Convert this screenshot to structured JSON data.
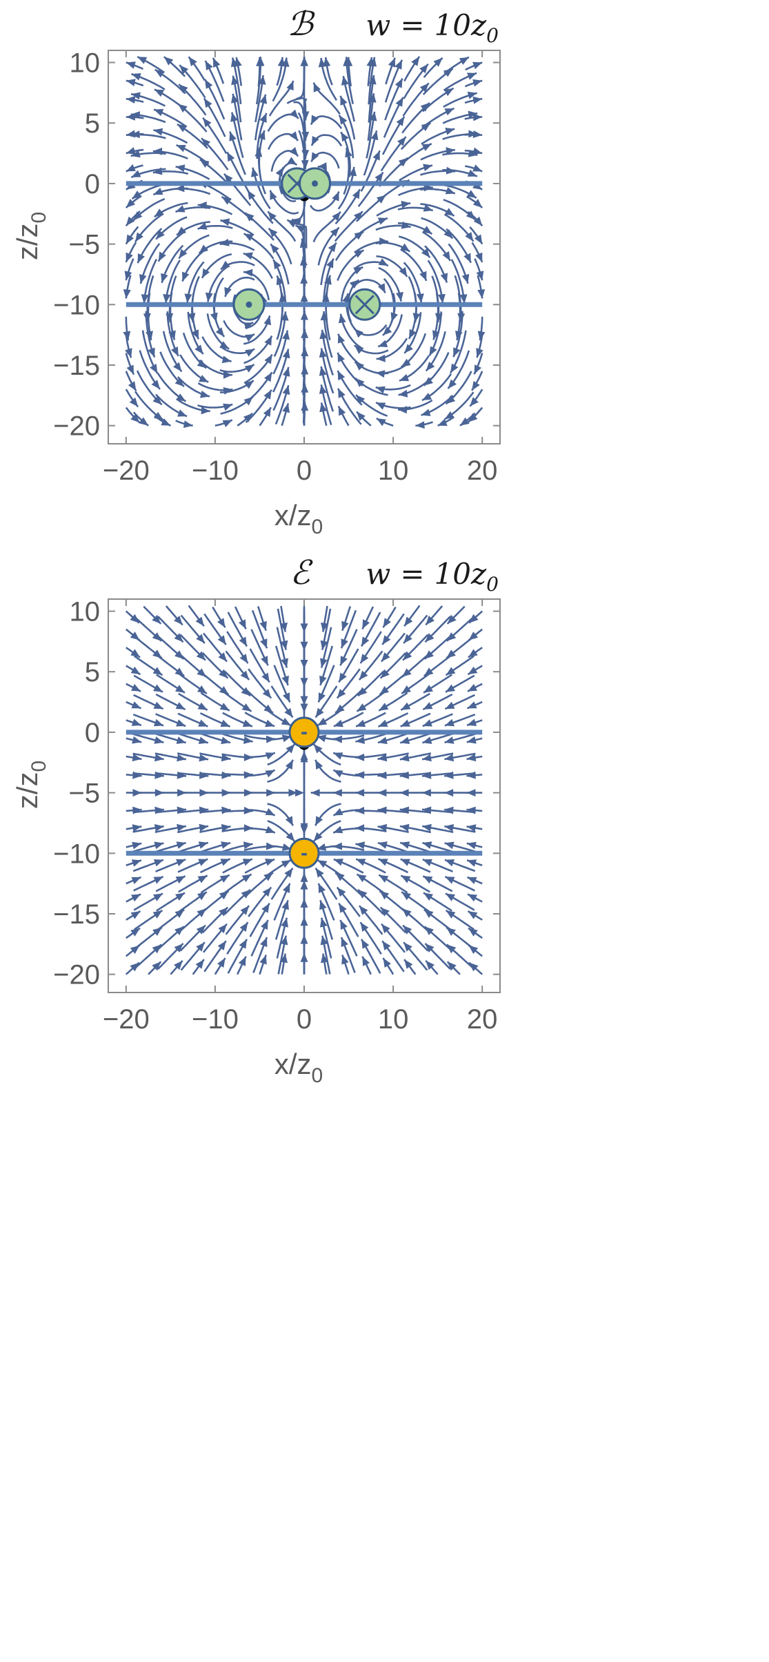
{
  "chart_data": [
    {
      "type": "vector_stream",
      "title_symbol": "ℬ",
      "title_param": "w = 10z0",
      "title_param_parts": {
        "lhs": "w",
        "eq": "=",
        "coef": "10",
        "var": "z",
        "sub": "0"
      },
      "xlabel": "x/z0",
      "ylabel": "z/z0",
      "xlabel_parts": {
        "main": "x/z",
        "sub": "0"
      },
      "ylabel_parts": {
        "main": "z/z",
        "sub": "0"
      },
      "xlim": [
        -22,
        22
      ],
      "ylim": [
        -21.5,
        11
      ],
      "xticks": [
        -20,
        -10,
        0,
        10,
        20
      ],
      "yticks": [
        10,
        5,
        0,
        -5,
        -10,
        -15,
        -20
      ],
      "xtick_labels": [
        "−20",
        "−10",
        "0",
        "10",
        "20"
      ],
      "ytick_labels": [
        "10",
        "5",
        "0",
        "−5",
        "−10",
        "−15",
        "−20"
      ],
      "plates_z": [
        0,
        -10
      ],
      "plate_x_range": [
        -20,
        20
      ],
      "charges": [
        {
          "x": -0.8,
          "z": 0,
          "kind": "current_in"
        },
        {
          "x": 1.2,
          "z": 0,
          "kind": "current_out"
        },
        {
          "x": -6.2,
          "z": -10,
          "kind": "current_out"
        },
        {
          "x": 6.8,
          "z": -10,
          "kind": "current_in"
        }
      ],
      "point": {
        "x": 0,
        "z": -1
      },
      "field_model": "magnetic"
    },
    {
      "type": "vector_stream",
      "title_symbol": "ℰ",
      "title_param": "w = 10z0",
      "title_param_parts": {
        "lhs": "w",
        "eq": "=",
        "coef": "10",
        "var": "z",
        "sub": "0"
      },
      "xlabel": "x/z0",
      "ylabel": "z/z0",
      "xlabel_parts": {
        "main": "x/z",
        "sub": "0"
      },
      "ylabel_parts": {
        "main": "z/z",
        "sub": "0"
      },
      "xlim": [
        -22,
        22
      ],
      "ylim": [
        -21.5,
        11
      ],
      "xticks": [
        -20,
        -10,
        0,
        10,
        20
      ],
      "yticks": [
        10,
        5,
        0,
        -5,
        -10,
        -15,
        -20
      ],
      "xtick_labels": [
        "−20",
        "−10",
        "0",
        "10",
        "20"
      ],
      "ytick_labels": [
        "10",
        "5",
        "0",
        "−5",
        "−10",
        "−15",
        "−20"
      ],
      "plates_z": [
        0,
        -10
      ],
      "plate_x_range": [
        -20,
        20
      ],
      "charges": [
        {
          "x": 0,
          "z": 0,
          "kind": "negative",
          "label": "-"
        },
        {
          "x": 0,
          "z": -10,
          "kind": "negative",
          "label": "-"
        }
      ],
      "point": {
        "x": 0,
        "z": -1
      },
      "field_model": "electric"
    }
  ],
  "colors": {
    "stream": "#4a6496",
    "plate": "#5b82b8",
    "frame": "#8a8a8a",
    "tick_text": "#5a5a5a",
    "current_marker_fill": "#a9d5a0",
    "current_marker_stroke": "#3a5f8f",
    "charge_fill": "#f5b400",
    "charge_stroke": "#3a5f8f",
    "point": "#000000"
  }
}
